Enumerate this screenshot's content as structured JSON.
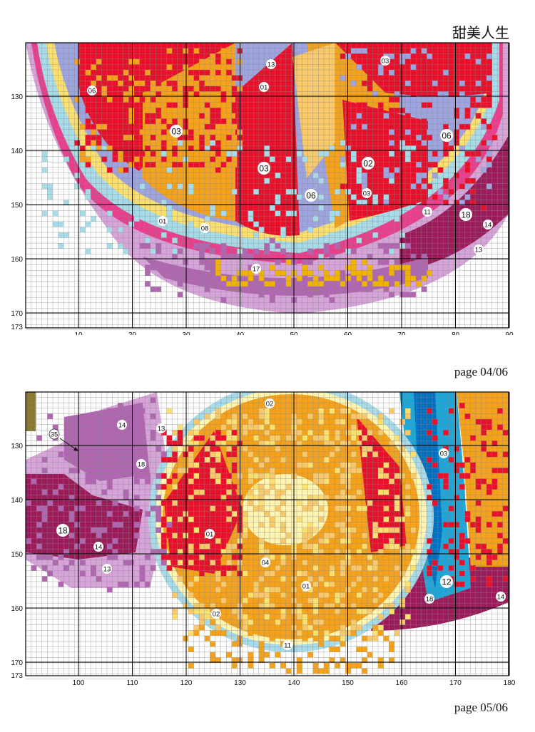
{
  "title": "甜美人生",
  "page_labels": {
    "page1": "page 04/06",
    "page2": "page 05/06"
  },
  "palette": {
    "red": "#e8102a",
    "orange": "#f4a21c",
    "light_orange": "#f8c96a",
    "yellow": "#fbe070",
    "pale_yellow": "#fff4b0",
    "lavender": "#9ea4de",
    "light_blue": "#a8dbe8",
    "pink": "#e83e8c",
    "light_purple": "#d6a4d8",
    "purple": "#b066b0",
    "dark_magenta": "#9c1b5a",
    "cyan": "#1fa6d8",
    "deep_blue": "#0070c0",
    "olive": "#8a7a30",
    "gold": "#f2b200"
  },
  "chart1": {
    "y_ticks": [
      "130",
      "140",
      "150",
      "160",
      "170",
      "173"
    ],
    "x_ticks": [
      "10",
      "20",
      "30",
      "40",
      "50",
      "60",
      "70",
      "80",
      "90"
    ],
    "labels": [
      "13",
      "03",
      "01",
      "06",
      "03",
      "03",
      "02",
      "03",
      "06",
      "06",
      "11",
      "18",
      "14",
      "13",
      "01",
      "08",
      "17"
    ]
  },
  "chart2": {
    "y_ticks": [
      "130",
      "140",
      "150",
      "160",
      "170",
      "173"
    ],
    "x_ticks": [
      "100",
      "110",
      "120",
      "130",
      "140",
      "150",
      "160",
      "170",
      "180"
    ],
    "labels": [
      "02",
      "14",
      "13",
      "35",
      "18",
      "03",
      "01",
      "18",
      "14",
      "04",
      "13",
      "12",
      "01",
      "18",
      "14",
      "02",
      "11"
    ]
  }
}
